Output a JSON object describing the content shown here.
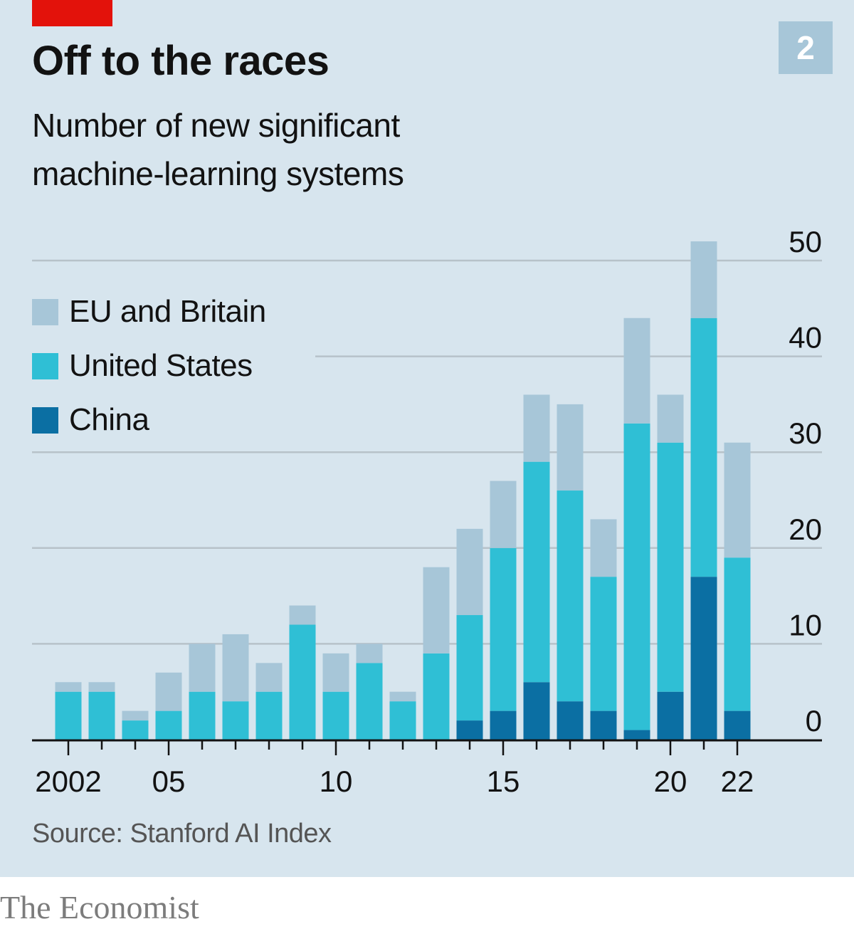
{
  "header": {
    "title": "Off to the races",
    "subtitle": "Number of new significant machine-learning systems",
    "chart_number": "2"
  },
  "legend": {
    "items": [
      {
        "label": "EU and Britain",
        "color": "#a7c6d8"
      },
      {
        "label": "United States",
        "color": "#2fbfd5"
      },
      {
        "label": "China",
        "color": "#0b6fa3"
      }
    ]
  },
  "footer": {
    "source": "Source: Stanford AI Index",
    "brand": "The Economist"
  },
  "colors": {
    "background": "#d7e5ee",
    "gridline": "#b7c2c9",
    "axis": "#121212",
    "accent_red": "#e3120b"
  },
  "chart_data": {
    "type": "bar",
    "stacked": true,
    "x": [
      2002,
      2003,
      2004,
      2005,
      2006,
      2007,
      2008,
      2009,
      2010,
      2011,
      2012,
      2013,
      2014,
      2015,
      2016,
      2017,
      2018,
      2019,
      2020,
      2021,
      2022
    ],
    "x_tick_labels": [
      {
        "year": 2002,
        "label": "2002"
      },
      {
        "year": 2005,
        "label": "05"
      },
      {
        "year": 2010,
        "label": "10"
      },
      {
        "year": 2015,
        "label": "15"
      },
      {
        "year": 2020,
        "label": "20"
      },
      {
        "year": 2022,
        "label": "22"
      }
    ],
    "series": [
      {
        "name": "China",
        "values": [
          0,
          0,
          0,
          0,
          0,
          0,
          0,
          0,
          0,
          0,
          0,
          0,
          2,
          3,
          6,
          4,
          3,
          1,
          5,
          17,
          3
        ]
      },
      {
        "name": "United States",
        "values": [
          5,
          5,
          2,
          3,
          5,
          4,
          5,
          12,
          5,
          8,
          4,
          9,
          11,
          17,
          23,
          22,
          14,
          32,
          26,
          27,
          16
        ]
      },
      {
        "name": "EU and Britain",
        "values": [
          1,
          1,
          1,
          4,
          5,
          7,
          3,
          2,
          4,
          2,
          1,
          9,
          9,
          7,
          7,
          9,
          6,
          11,
          5,
          8,
          12
        ]
      }
    ],
    "ylim": [
      0,
      50
    ],
    "y_ticks": [
      0,
      10,
      20,
      30,
      40,
      50
    ],
    "y_axis_side": "right",
    "grid": true,
    "legend_position": "top-left"
  }
}
